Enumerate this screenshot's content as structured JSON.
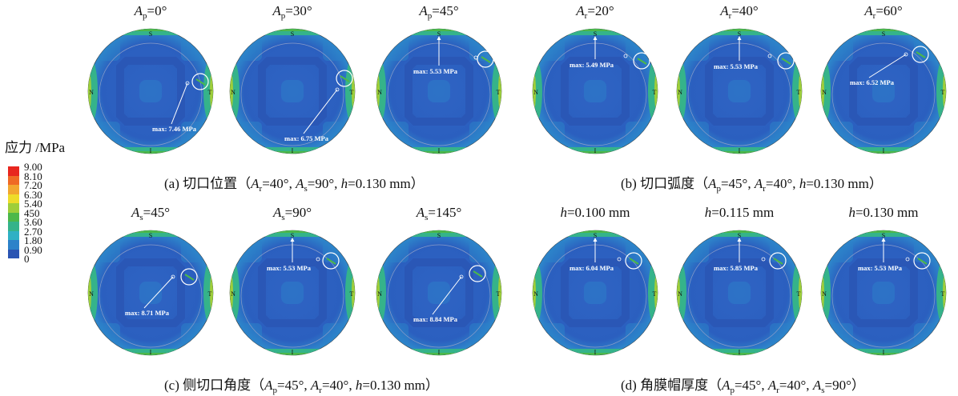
{
  "legend": {
    "title": "应力 /MPa",
    "labels": [
      "9.00",
      "8.10",
      "7.20",
      "6.30",
      "5.40",
      "450",
      "3.60",
      "2.70",
      "1.80",
      "0.90",
      "0"
    ],
    "colors": [
      "#e8261f",
      "#ef6a25",
      "#f2a730",
      "#eedc2a",
      "#9fce3a",
      "#4cb84a",
      "#35b38a",
      "#2fb0c4",
      "#2c82c9",
      "#2a55b3"
    ]
  },
  "markers": {
    "top": "S",
    "left": "N",
    "right": "T",
    "bottom": "I"
  },
  "plots": [
    {
      "var": "A",
      "sub": "p",
      "val": "=0°",
      "max": "max: 7.46 MPa"
    },
    {
      "var": "A",
      "sub": "p",
      "val": "=30°",
      "max": "max: 6.75 MPa"
    },
    {
      "var": "A",
      "sub": "p",
      "val": "=45°",
      "max": "max: 5.53 MPa"
    },
    {
      "var": "A",
      "sub": "r",
      "val": "=20°",
      "max": "max: 5.49 MPa"
    },
    {
      "var": "A",
      "sub": "r",
      "val": "=40°",
      "max": "max: 5.53 MPa"
    },
    {
      "var": "A",
      "sub": "r",
      "val": "=60°",
      "max": "max: 6.52 MPa"
    },
    {
      "var": "A",
      "sub": "s",
      "val": "=45°",
      "max": "max: 8.71 MPa"
    },
    {
      "var": "A",
      "sub": "s",
      "val": "=90°",
      "max": "max: 5.53 MPa"
    },
    {
      "var": "A",
      "sub": "s",
      "val": "=145°",
      "max": "max: 8.84 MPa"
    },
    {
      "var": "h",
      "sub": "",
      "val": "=0.100 mm",
      "max": "max: 6.04 MPa"
    },
    {
      "var": "h",
      "sub": "",
      "val": "=0.115 mm",
      "max": "max: 5.85 MPa"
    },
    {
      "var": "h",
      "sub": "",
      "val": "=0.130 mm",
      "max": "max: 5.53 MPa"
    }
  ],
  "captions": {
    "a": {
      "label": "(a) 切口位置（",
      "p1": "A",
      "p1s": "r",
      "v1": "=40°, ",
      "p2": "A",
      "p2s": "s",
      "v2": "=90°, ",
      "p3": "h",
      "p3s": "",
      "v3": "=0.130 mm）"
    },
    "b": {
      "label": "(b) 切口弧度（",
      "p1": "A",
      "p1s": "p",
      "v1": "=45°, ",
      "p2": "A",
      "p2s": "r",
      "v2": "=40°, ",
      "p3": "h",
      "p3s": "",
      "v3": "=0.130 mm）"
    },
    "c": {
      "label": "(c) 侧切口角度（",
      "p1": "A",
      "p1s": "p",
      "v1": "=45°, ",
      "p2": "A",
      "p2s": "r",
      "v2": "=40°, ",
      "p3": "h",
      "p3s": "",
      "v3": "=0.130 mm）"
    },
    "d": {
      "label": "(d) 角膜帽厚度（",
      "p1": "A",
      "p1s": "p",
      "v1": "=45°, ",
      "p2": "A",
      "p2s": "r",
      "v2": "=40°, ",
      "p3": "A",
      "p3s": "s",
      "v3": "=90°）"
    }
  }
}
